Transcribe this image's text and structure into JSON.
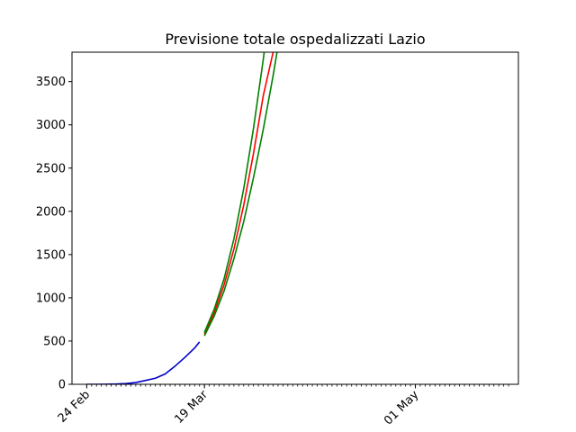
{
  "chart_data": {
    "type": "line",
    "title": "Previsione totale ospedalizzati Lazio",
    "xlabel": "",
    "ylabel": "",
    "x_range": [
      "2020-02-21",
      "2020-05-22"
    ],
    "ylim": [
      0,
      3840
    ],
    "yticks": [
      0,
      500,
      1000,
      1500,
      2000,
      2500,
      3000,
      3500
    ],
    "xticks": [
      {
        "date": "2020-02-24",
        "label": "24 Feb"
      },
      {
        "date": "2020-03-19",
        "label": "19 Mar"
      },
      {
        "date": "2020-05-01",
        "label": "01 May"
      }
    ],
    "minor_ticks": {
      "start": "2020-02-24",
      "end": "2020-05-20",
      "step_days": 1
    },
    "grid": false,
    "legend": "none",
    "series": [
      {
        "color": "#0000cc",
        "x": [
          "2020-02-24",
          "2020-02-26",
          "2020-02-28",
          "2020-03-01",
          "2020-03-03",
          "2020-03-05",
          "2020-03-07",
          "2020-03-09",
          "2020-03-11",
          "2020-03-13",
          "2020-03-15",
          "2020-03-17",
          "2020-03-18"
        ],
        "y": [
          0,
          0,
          1,
          3,
          8,
          20,
          45,
          70,
          120,
          210,
          310,
          420,
          490
        ]
      },
      {
        "color": "#ff0000",
        "x": [
          "2020-03-19",
          "2020-03-21",
          "2020-03-23",
          "2020-03-25",
          "2020-03-27",
          "2020-03-29",
          "2020-03-31",
          "2020-04-02",
          "2020-04-03"
        ],
        "y": [
          580,
          830,
          1150,
          1560,
          2070,
          2670,
          3340,
          3840,
          4050
        ]
      },
      {
        "color": "#008000",
        "x": [
          "2020-03-19",
          "2020-03-21",
          "2020-03-23",
          "2020-03-25",
          "2020-03-27",
          "2020-03-29",
          "2020-03-31",
          "2020-04-02"
        ],
        "y": [
          600,
          870,
          1220,
          1680,
          2260,
          2960,
          3760,
          4680
        ]
      },
      {
        "color": "#008000",
        "x": [
          "2020-03-19",
          "2020-03-21",
          "2020-03-23",
          "2020-03-25",
          "2020-03-27",
          "2020-03-29",
          "2020-03-31",
          "2020-04-02",
          "2020-04-04"
        ],
        "y": [
          560,
          790,
          1080,
          1450,
          1880,
          2390,
          2950,
          3570,
          4250
        ]
      }
    ]
  }
}
